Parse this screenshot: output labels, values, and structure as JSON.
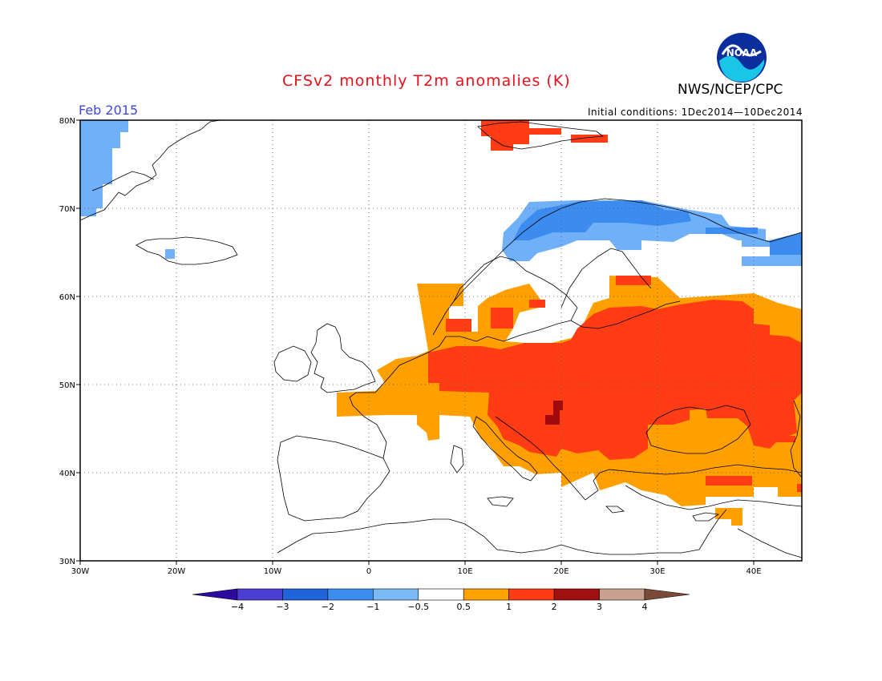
{
  "header": {
    "title": "CFSv2 monthly T2m anomalies (K)",
    "agency": "NWS/NCEP/CPC",
    "month": "Feb 2015",
    "initial_conditions": "Initial conditions: 1Dec2014—10Dec2014",
    "logo_text": "NOAA",
    "logo_icon": "noaa-logo-icon"
  },
  "map": {
    "lat_labels": [
      "80N",
      "70N",
      "60N",
      "50N",
      "40N",
      "30N"
    ],
    "lon_labels": [
      "30W",
      "20W",
      "10W",
      "0",
      "10E",
      "20E",
      "30E",
      "40E"
    ],
    "lat_values": [
      80,
      70,
      60,
      50,
      40,
      30
    ],
    "lon_values": [
      -30,
      -20,
      -10,
      0,
      10,
      20,
      30,
      40
    ],
    "lon_range": [
      -30,
      45
    ],
    "lat_range": [
      30,
      80
    ],
    "grid": "dotted"
  },
  "colorbar": {
    "labels": [
      "−4",
      "−3",
      "−2",
      "−1",
      "−0.5",
      "0.5",
      "1",
      "2",
      "3",
      "4"
    ],
    "colors": [
      "#2c0aa0",
      "#4a3fd0",
      "#1f64d8",
      "#3b8ef0",
      "#7ab8f6",
      "#ffffff",
      "#ffa300",
      "#ff3c14",
      "#a01010",
      "#c8a090",
      "#7b4a38"
    ]
  },
  "anomaly_colors": {
    "light_blue": "#70b0f8",
    "blue": "#3c8cf0",
    "orange": "#ffa000",
    "red": "#ff3c14",
    "dark_red": "#a00a0a"
  }
}
